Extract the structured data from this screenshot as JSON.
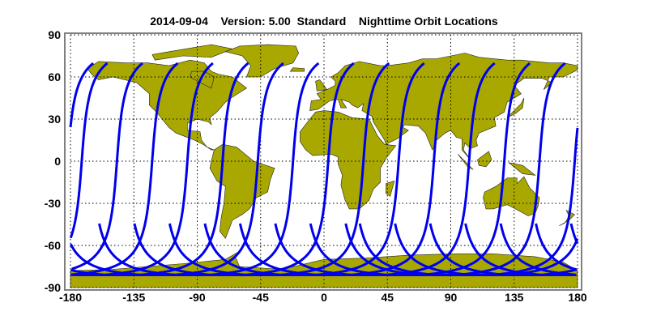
{
  "chart_data": {
    "type": "map",
    "title": "2014-09-04    Version: 5.00  Standard    Nighttime Orbit Locations",
    "xlim": [
      -180,
      180
    ],
    "ylim": [
      -90,
      90
    ],
    "xticks": [
      -180,
      -135,
      -90,
      -45,
      0,
      45,
      90,
      135,
      180
    ],
    "yticks": [
      90,
      60,
      30,
      0,
      -30,
      -60,
      -90
    ],
    "grid": true,
    "grid_style": "dotted",
    "colors": {
      "land": "#a8a800",
      "orbit": "#0000ee",
      "frame": "#808080"
    },
    "orbit_tracks": {
      "equator_crossing_longitudes": [
        -172,
        -147,
        -122,
        -97,
        -72,
        -47,
        -22,
        3,
        28,
        53,
        78,
        103,
        128,
        153,
        178
      ],
      "max_latitude": 70,
      "min_latitude": -81
    }
  }
}
